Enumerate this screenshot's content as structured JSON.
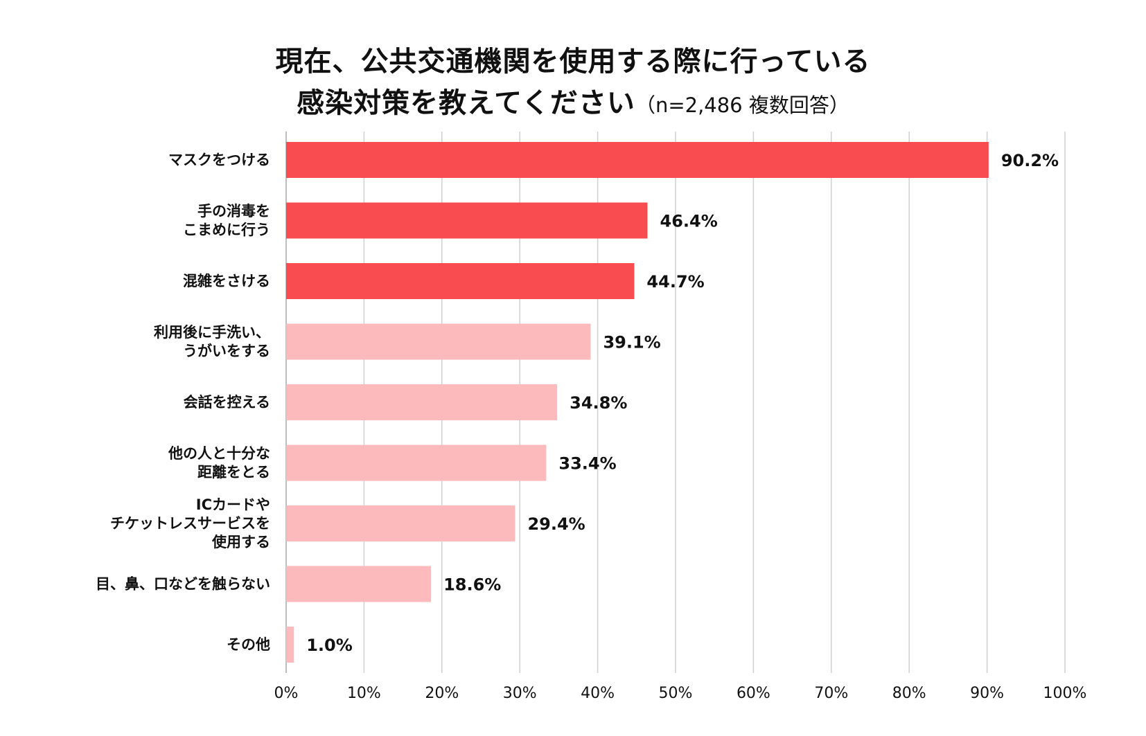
{
  "title": {
    "line1": "現在、公共交通機関を使用する際に行っている",
    "line2": "感染対策を教えてください",
    "note": "（n=2,486 複数回答）"
  },
  "colors": {
    "top": "#F84C50",
    "rest": "#FCBABC",
    "grid": "#cfcfcf"
  },
  "chart_data": {
    "type": "bar",
    "orientation": "horizontal",
    "title": "現在、公共交通機関を使用する際に行っている感染対策を教えてください（n=2,486 複数回答）",
    "categories": [
      [
        "マスクをつける"
      ],
      [
        "手の消毒を",
        "こまめに行う"
      ],
      [
        "混雑をさける"
      ],
      [
        "利用後に手洗い、",
        "うがいをする"
      ],
      [
        "会話を控える"
      ],
      [
        "他の人と十分な",
        "距離をとる"
      ],
      [
        "ICカードや",
        "チケットレスサービスを",
        "使用する"
      ],
      [
        "目、鼻、口などを触らない"
      ],
      [
        "その他"
      ]
    ],
    "values": [
      90.2,
      46.4,
      44.7,
      39.1,
      34.8,
      33.4,
      29.4,
      18.6,
      1.0
    ],
    "value_labels": [
      "90.2%",
      "46.4%",
      "44.7%",
      "39.1%",
      "34.8%",
      "33.4%",
      "29.4%",
      "18.6%",
      "1.0%"
    ],
    "highlight_count": 3,
    "xlim": [
      0,
      100
    ],
    "xticks": [
      "0%",
      "10%",
      "20%",
      "30%",
      "40%",
      "50%",
      "60%",
      "70%",
      "80%",
      "90%",
      "100%"
    ],
    "grid": true,
    "xlabel": "",
    "ylabel": ""
  }
}
